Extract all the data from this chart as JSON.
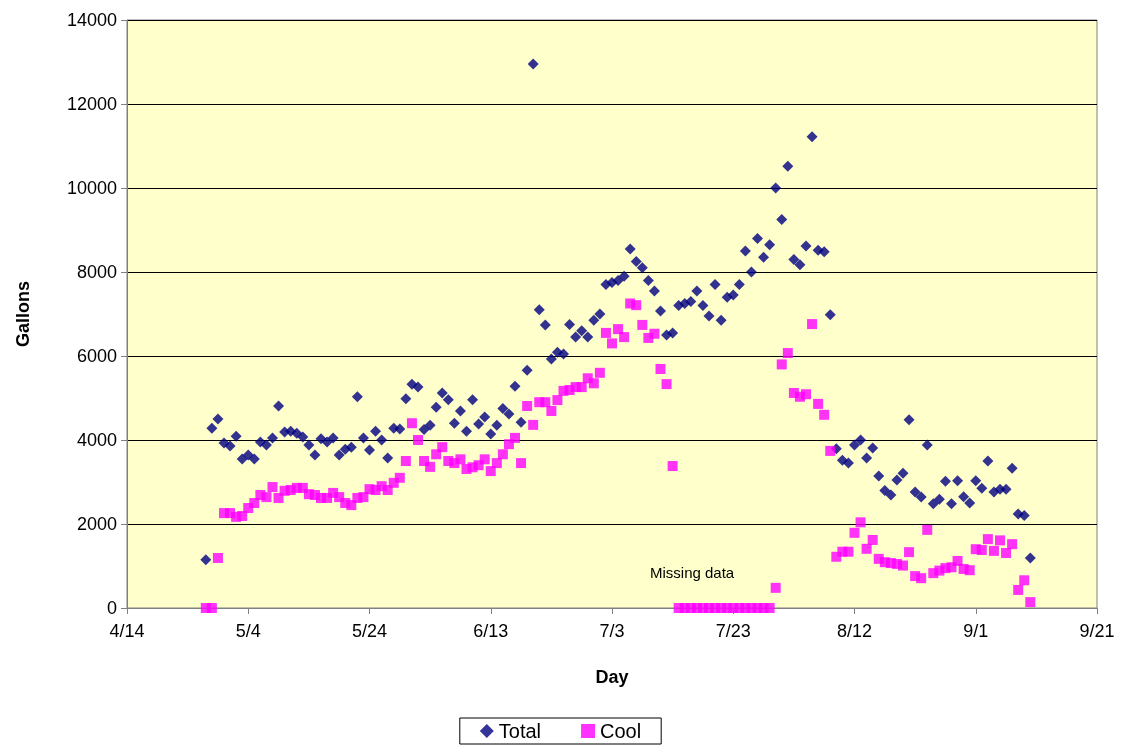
{
  "chart_data": {
    "type": "scatter",
    "xlabel": "Day",
    "ylabel": "Gallons",
    "x": [
      "--04-27",
      "--04-28",
      "--04-29",
      "--04-30",
      "--05-01",
      "--05-02",
      "--05-03",
      "--05-04",
      "--05-05",
      "--05-06",
      "--05-07",
      "--05-08",
      "--05-09",
      "--05-10",
      "--05-11",
      "--05-12",
      "--05-13",
      "--05-14",
      "--05-15",
      "--05-16",
      "--05-17",
      "--05-18",
      "--05-19",
      "--05-20",
      "--05-21",
      "--05-22",
      "--05-23",
      "--05-24",
      "--05-25",
      "--05-26",
      "--05-27",
      "--05-28",
      "--05-29",
      "--05-30",
      "--05-31",
      "--06-01",
      "--06-02",
      "--06-03",
      "--06-04",
      "--06-05",
      "--06-06",
      "--06-07",
      "--06-08",
      "--06-09",
      "--06-10",
      "--06-11",
      "--06-12",
      "--06-13",
      "--06-14",
      "--06-15",
      "--06-16",
      "--06-17",
      "--06-18",
      "--06-19",
      "--06-20",
      "--06-21",
      "--06-22",
      "--06-23",
      "--06-24",
      "--06-25",
      "--06-26",
      "--06-27",
      "--06-28",
      "--06-29",
      "--06-30",
      "--07-01",
      "--07-02",
      "--07-03",
      "--07-04",
      "--07-05",
      "--07-06",
      "--07-07",
      "--07-08",
      "--07-09",
      "--07-10",
      "--07-11",
      "--07-12",
      "--07-13",
      "--07-14",
      "--07-15",
      "--07-16",
      "--07-17",
      "--07-18",
      "--07-19",
      "--07-20",
      "--07-21",
      "--07-22",
      "--07-23",
      "--07-24",
      "--07-25",
      "--07-26",
      "--07-27",
      "--07-28",
      "--07-29",
      "--07-30",
      "--07-31",
      "--08-01",
      "--08-02",
      "--08-03",
      "--08-04",
      "--08-05",
      "--08-06",
      "--08-07",
      "--08-08",
      "--08-09",
      "--08-10",
      "--08-11",
      "--08-12",
      "--08-13",
      "--08-14",
      "--08-15",
      "--08-16",
      "--08-17",
      "--08-18",
      "--08-19",
      "--08-20",
      "--08-21",
      "--08-22",
      "--08-23",
      "--08-24",
      "--08-25",
      "--08-26",
      "--08-27",
      "--08-28",
      "--08-29",
      "--08-30",
      "--08-31",
      "--09-01",
      "--09-02",
      "--09-03",
      "--09-04",
      "--09-05",
      "--09-06",
      "--09-07",
      "--09-08",
      "--09-09",
      "--09-10"
    ],
    "series": [
      {
        "name": "Total",
        "color": "#000080",
        "marker": "diamond",
        "values": [
          1150,
          4280,
          4500,
          3930,
          3860,
          4090,
          3550,
          3640,
          3550,
          3950,
          3880,
          4050,
          4810,
          4190,
          4210,
          4160,
          4070,
          3880,
          3640,
          4030,
          3950,
          4050,
          3640,
          3780,
          3830,
          5030,
          4050,
          3760,
          4210,
          4000,
          3570,
          4280,
          4260,
          4980,
          5330,
          5260,
          4250,
          4350,
          4780,
          5120,
          4960,
          4400,
          4690,
          4210,
          4960,
          4380,
          4550,
          4140,
          4350,
          4750,
          4620,
          5280,
          4420,
          5660,
          12950,
          7100,
          6740,
          5930,
          6090,
          6050,
          6750,
          6450,
          6600,
          6450,
          6850,
          7000,
          7700,
          7750,
          7800,
          7900,
          8550,
          8250,
          8100,
          7800,
          7550,
          7070,
          6500,
          6550,
          7200,
          7250,
          7300,
          7550,
          7200,
          6950,
          7700,
          6850,
          7400,
          7450,
          7700,
          8500,
          8000,
          8800,
          8350,
          8650,
          10000,
          9250,
          10520,
          8300,
          8170,
          8620,
          11220,
          8520,
          8480,
          6980,
          3790,
          3520,
          3450,
          3880,
          4000,
          3570,
          3810,
          3140,
          2800,
          2690,
          3050,
          3210,
          4480,
          2760,
          2640,
          3880,
          2480,
          2590,
          3020,
          2480,
          3030,
          2650,
          2500,
          3030,
          2850,
          3500,
          2760,
          2830,
          2830,
          3330,
          2240,
          2200,
          1190
        ]
      },
      {
        "name": "Cool",
        "color": "#ff00ff",
        "marker": "square",
        "values": [
          0,
          0,
          1190,
          2260,
          2260,
          2170,
          2190,
          2380,
          2500,
          2690,
          2640,
          2880,
          2620,
          2790,
          2810,
          2860,
          2860,
          2710,
          2690,
          2620,
          2620,
          2740,
          2640,
          2500,
          2450,
          2620,
          2640,
          2830,
          2810,
          2900,
          2810,
          2980,
          3100,
          3500,
          4400,
          4000,
          3500,
          3360,
          3660,
          3830,
          3500,
          3450,
          3540,
          3310,
          3350,
          3400,
          3540,
          3260,
          3450,
          3660,
          3900,
          4050,
          3450,
          4810,
          4360,
          4900,
          4900,
          4690,
          4950,
          5170,
          5190,
          5260,
          5260,
          5470,
          5350,
          5600,
          6550,
          6300,
          6640,
          6450,
          7250,
          7210,
          6740,
          6430,
          6530,
          5690,
          5330,
          3380,
          0,
          0,
          0,
          0,
          0,
          0,
          0,
          0,
          0,
          0,
          0,
          0,
          0,
          0,
          0,
          0,
          480,
          5800,
          6070,
          5120,
          5030,
          5090,
          6760,
          4860,
          4600,
          3740,
          1220,
          1340,
          1340,
          1790,
          2040,
          1410,
          1620,
          1170,
          1090,
          1070,
          1050,
          1010,
          1330,
          760,
          710,
          1860,
          830,
          890,
          950,
          970,
          1120,
          930,
          900,
          1400,
          1380,
          1640,
          1360,
          1610,
          1310,
          1520,
          430,
          660,
          140
        ]
      }
    ],
    "xlim": [
      "--04-14",
      "--09-21"
    ],
    "xticks": [
      {
        "value": "--04-14",
        "label": "4/14"
      },
      {
        "value": "--05-04",
        "label": "5/4"
      },
      {
        "value": "--05-24",
        "label": "5/24"
      },
      {
        "value": "--06-13",
        "label": "6/13"
      },
      {
        "value": "--07-03",
        "label": "7/3"
      },
      {
        "value": "--07-23",
        "label": "7/23"
      },
      {
        "value": "--08-12",
        "label": "8/12"
      },
      {
        "value": "--09-01",
        "label": "9/1"
      },
      {
        "value": "--09-21",
        "label": "9/21"
      }
    ],
    "ylim": [
      0,
      14000
    ],
    "yticks": [
      0,
      2000,
      4000,
      6000,
      8000,
      10000,
      12000,
      14000
    ],
    "grid": "y",
    "legend": "bottom",
    "annotations": [
      "Missing data"
    ]
  }
}
